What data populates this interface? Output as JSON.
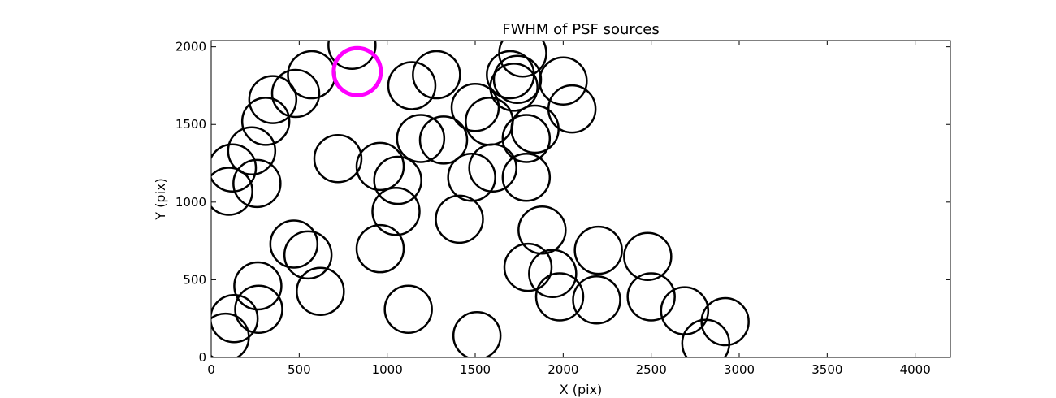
{
  "chart_data": {
    "type": "scatter",
    "title": "FWHM of PSF sources",
    "xlabel": "X (pix)",
    "ylabel": "Y (pix)",
    "xlim": [
      0,
      4200
    ],
    "ylim": [
      0,
      2040
    ],
    "xticks": [
      0,
      500,
      1000,
      1500,
      2000,
      2500,
      3000,
      3500,
      4000
    ],
    "yticks": [
      0,
      500,
      1000,
      1500,
      2000
    ],
    "grid": false,
    "marker": "circle-outline",
    "colors": {
      "default": "#000000",
      "highlight": "#ff00ff"
    },
    "points": [
      {
        "x": 80,
        "y": 130
      },
      {
        "x": 130,
        "y": 250
      },
      {
        "x": 270,
        "y": 310
      },
      {
        "x": 265,
        "y": 460
      },
      {
        "x": 470,
        "y": 730
      },
      {
        "x": 550,
        "y": 660
      },
      {
        "x": 620,
        "y": 425
      },
      {
        "x": 100,
        "y": 1070
      },
      {
        "x": 120,
        "y": 1220
      },
      {
        "x": 260,
        "y": 1120
      },
      {
        "x": 230,
        "y": 1330
      },
      {
        "x": 310,
        "y": 1520
      },
      {
        "x": 350,
        "y": 1660
      },
      {
        "x": 480,
        "y": 1700
      },
      {
        "x": 570,
        "y": 1820
      },
      {
        "x": 720,
        "y": 1280
      },
      {
        "x": 800,
        "y": 2010
      },
      {
        "x": 830,
        "y": 1840,
        "highlight": true
      },
      {
        "x": 960,
        "y": 1230
      },
      {
        "x": 1060,
        "y": 1140
      },
      {
        "x": 1050,
        "y": 940
      },
      {
        "x": 960,
        "y": 700
      },
      {
        "x": 1140,
        "y": 1750
      },
      {
        "x": 1280,
        "y": 1820
      },
      {
        "x": 1190,
        "y": 1410
      },
      {
        "x": 1320,
        "y": 1400
      },
      {
        "x": 1410,
        "y": 890
      },
      {
        "x": 1120,
        "y": 310
      },
      {
        "x": 1510,
        "y": 140
      },
      {
        "x": 1500,
        "y": 1610
      },
      {
        "x": 1580,
        "y": 1520
      },
      {
        "x": 1600,
        "y": 1220
      },
      {
        "x": 1480,
        "y": 1160
      },
      {
        "x": 1700,
        "y": 1820
      },
      {
        "x": 1740,
        "y": 1790
      },
      {
        "x": 1720,
        "y": 1740
      },
      {
        "x": 1770,
        "y": 1960
      },
      {
        "x": 1790,
        "y": 1410
      },
      {
        "x": 1840,
        "y": 1470
      },
      {
        "x": 1790,
        "y": 1160
      },
      {
        "x": 2000,
        "y": 1780
      },
      {
        "x": 2050,
        "y": 1600
      },
      {
        "x": 1880,
        "y": 820
      },
      {
        "x": 1800,
        "y": 580
      },
      {
        "x": 1940,
        "y": 540
      },
      {
        "x": 1980,
        "y": 390
      },
      {
        "x": 2200,
        "y": 690
      },
      {
        "x": 2190,
        "y": 370
      },
      {
        "x": 2480,
        "y": 650
      },
      {
        "x": 2500,
        "y": 390
      },
      {
        "x": 2690,
        "y": 300
      },
      {
        "x": 2810,
        "y": 90
      },
      {
        "x": 2920,
        "y": 230
      }
    ]
  }
}
